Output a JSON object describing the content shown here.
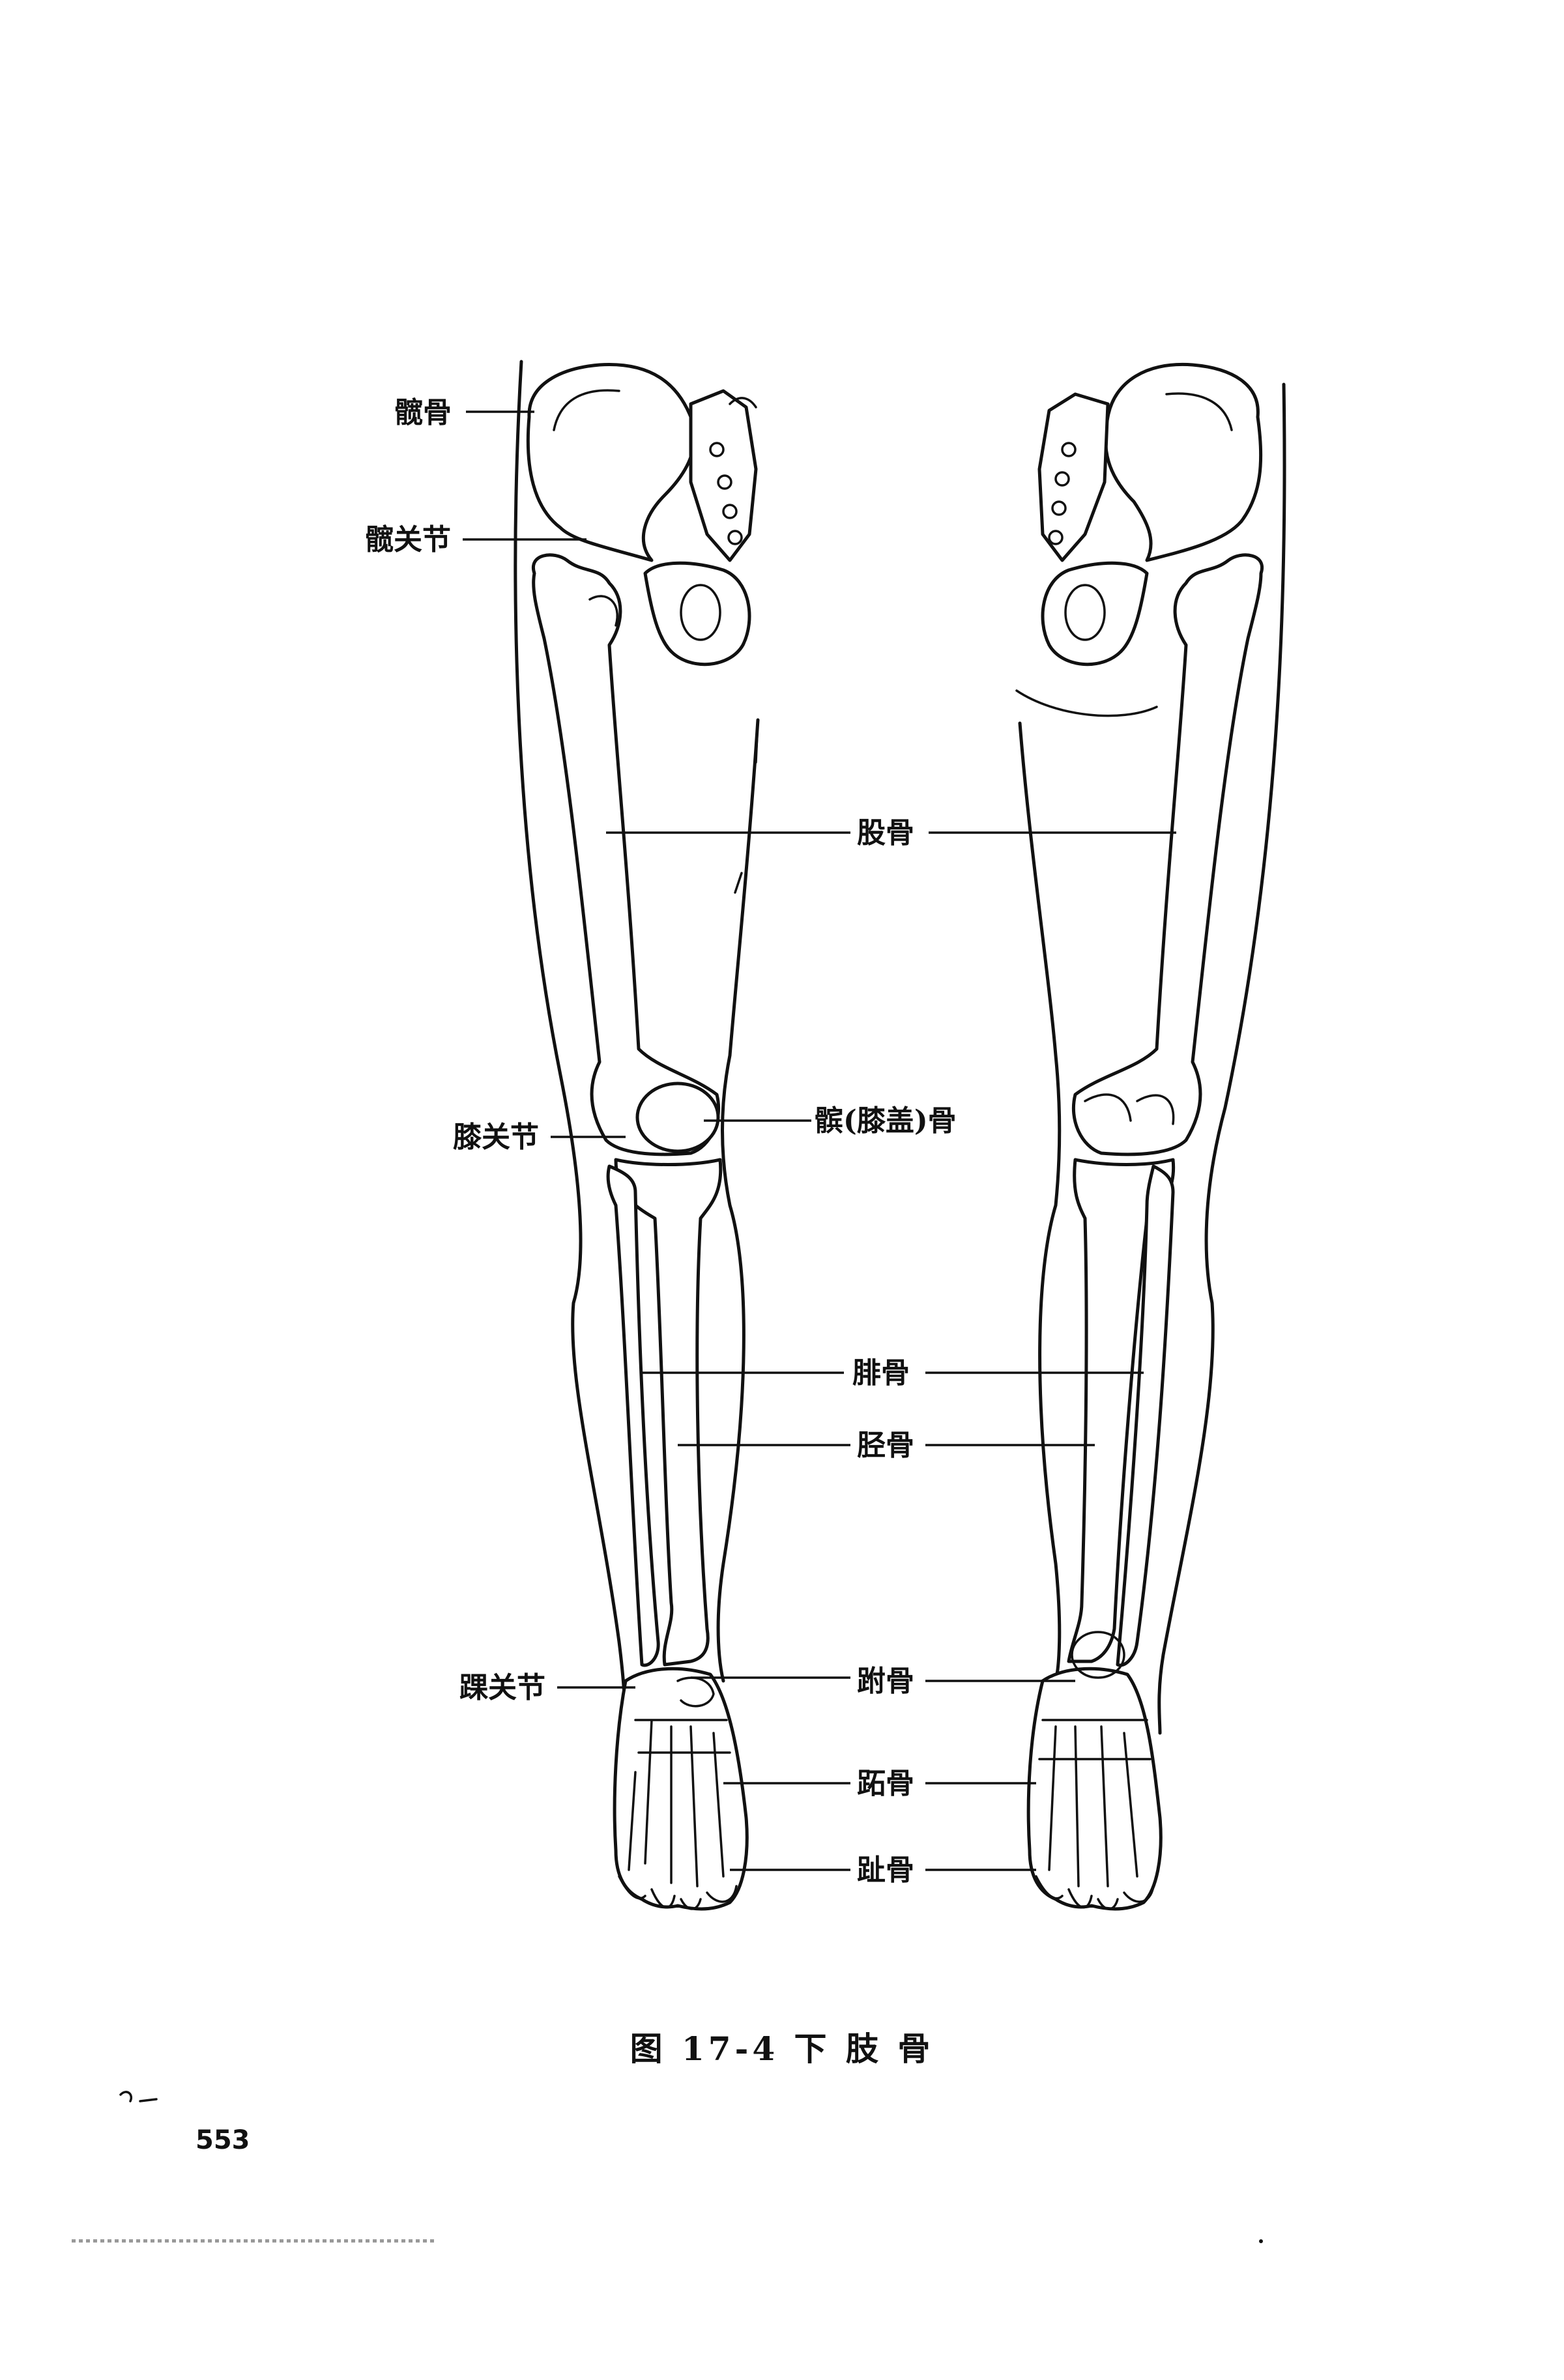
{
  "labels": {
    "ilium": "髋骨",
    "hip_joint": "髋关节",
    "femur": "股骨",
    "patella": "髌(膝盖)骨",
    "knee_joint": "膝关节",
    "fibula": "腓骨",
    "tibia": "胫骨",
    "ankle_joint": "踝关节",
    "tarsals": "跗骨",
    "metatarsals": "跖骨",
    "phalanges": "趾骨"
  },
  "caption": "图 17-4 下 肢 骨",
  "page_number": "553"
}
